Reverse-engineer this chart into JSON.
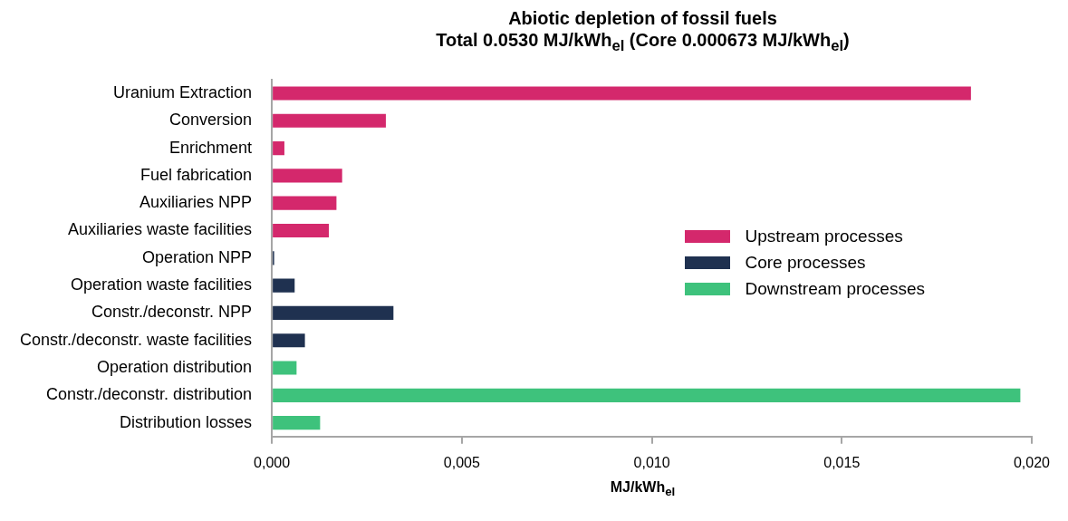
{
  "chart_data": {
    "type": "bar",
    "orientation": "horizontal",
    "stacked": true,
    "title": "Abiotic depletion of fossil fuels",
    "subtitle": "Total 0.0530 MJ/kWh$_{el}$  (Core 0.000673 MJ/kWh$_{el}$)",
    "xlabel": "MJ/kWh$_{el}$",
    "categories": [
      "Uranium Extraction",
      "Conversion",
      "Enrichment",
      "Fuel fabrication",
      "Auxiliaries NPP",
      "Auxiliaries waste facilities",
      "Operation NPP",
      "Operation waste facilities",
      "Constr./deconstr. NPP",
      "Constr./deconstr. waste facilities",
      "Operation distribution",
      "Constr./deconstr. distribution",
      "Distribution losses"
    ],
    "series": [
      {
        "name": "Upstream processes",
        "color": "#d4286c",
        "values": [
          0.0184,
          0.003,
          0.00033,
          0.00185,
          0.0017,
          0.0015,
          null,
          null,
          null,
          null,
          null,
          null,
          null
        ]
      },
      {
        "name": "Core processes",
        "color": "#1f3150",
        "values": [
          null,
          null,
          null,
          null,
          null,
          null,
          6e-05,
          0.0006,
          0.0032,
          0.00087,
          null,
          null,
          null
        ]
      },
      {
        "name": "Downstream processes",
        "color": "#3ec27c",
        "values": [
          null,
          null,
          null,
          null,
          null,
          null,
          null,
          null,
          null,
          null,
          0.00065,
          0.0197,
          0.00127
        ]
      }
    ],
    "xlim": [
      0,
      0.02
    ],
    "xticks": [
      {
        "value": 0,
        "label": "0,000"
      },
      {
        "value": 0.005,
        "label": "0,005"
      },
      {
        "value": 0.01,
        "label": "0,010"
      },
      {
        "value": 0.015,
        "label": "0,015"
      },
      {
        "value": 0.02,
        "label": "0,020"
      }
    ],
    "grid": false,
    "legend": "right"
  }
}
